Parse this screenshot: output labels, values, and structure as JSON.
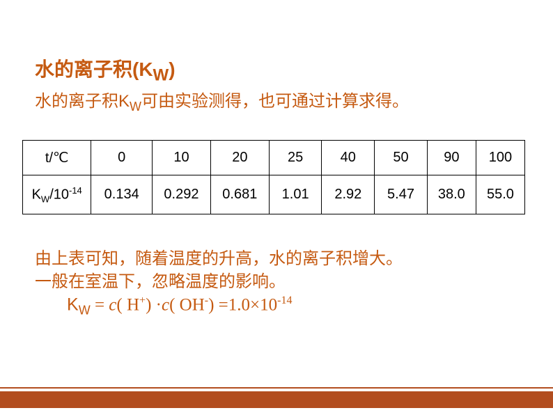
{
  "title_main": "水的离子积(K",
  "title_sub": "W",
  "title_close": ")",
  "subtitle_pre": "水的离子积K",
  "subtitle_sub": "W",
  "subtitle_post": "可由实验测得，也可通过计算求得。",
  "text_color": "#c55a11",
  "footer_color": "#b24d1f",
  "table": {
    "row1_header": "t/℃",
    "row2_header_pre": "K",
    "row2_header_sub": "W",
    "row2_header_mid": "/10",
    "row2_header_sup": "-14",
    "columns": [
      "0",
      "10",
      "20",
      "25",
      "40",
      "50",
      "90",
      "100"
    ],
    "values": [
      "0.134",
      "0.292",
      "0.681",
      "1.01",
      "2.92",
      "5.47",
      "38.0",
      "55.0"
    ]
  },
  "conclusion_line1": "由上表可知，随着温度的升高，水的离子积增大。",
  "conclusion_line2": "一般在室温下，忽略温度的影响。",
  "equation": {
    "lhs_K": "K",
    "lhs_sub": "W",
    "eq": " =  ",
    "c1_pre": "c",
    "c1_open": "( H",
    "c1_sup": "+",
    "c1_close": ") ·",
    "c2_pre": "c",
    "c2_open": "( OH",
    "c2_sup": "-",
    "c2_close": ")   =1.0×10",
    "rhs_sup": "-14"
  }
}
